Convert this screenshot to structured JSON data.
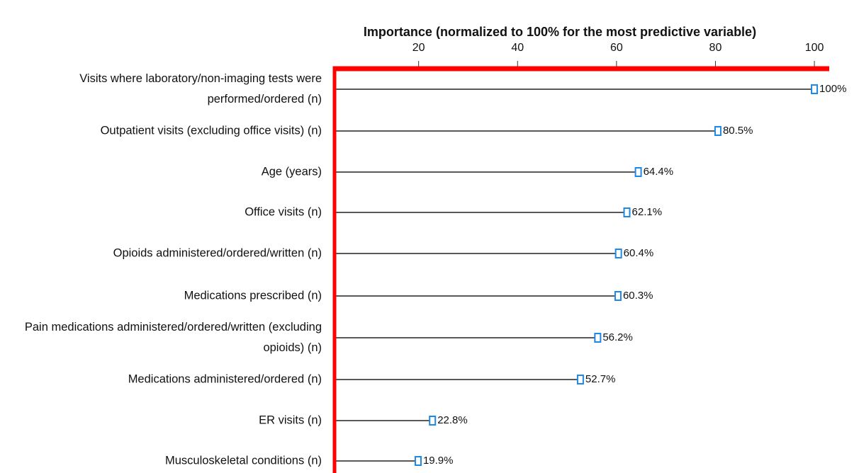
{
  "chart_data": {
    "type": "lollipop",
    "title": "Importance (normalized to 100% for the most predictive variable)",
    "categories": [
      "Visits where laboratory/non-imaging tests were performed/ordered (n)",
      "Outpatient visits (excluding office visits) (n)",
      "Age (years)",
      "Office visits (n)",
      "Opioids administered/ordered/written (n)",
      "Medications prescribed (n)",
      "Pain medications administered/ordered/written (excluding opioids) (n)",
      "Medications administered/ordered (n)",
      "ER visits (n)",
      "Musculoskeletal conditions (n)"
    ],
    "values": [
      100,
      80.5,
      64.4,
      62.1,
      60.4,
      60.3,
      56.2,
      52.7,
      22.8,
      19.9
    ],
    "value_labels": [
      "100%",
      "80.5%",
      "64.4%",
      "62.1%",
      "60.4%",
      "60.3%",
      "56.2%",
      "52.7%",
      "22.8%",
      "19.9%"
    ],
    "color": "#1e88e5",
    "axis_color": "#ff0000",
    "xlim": [
      3,
      103
    ],
    "xticks": [
      20,
      40,
      60,
      80,
      100
    ]
  }
}
